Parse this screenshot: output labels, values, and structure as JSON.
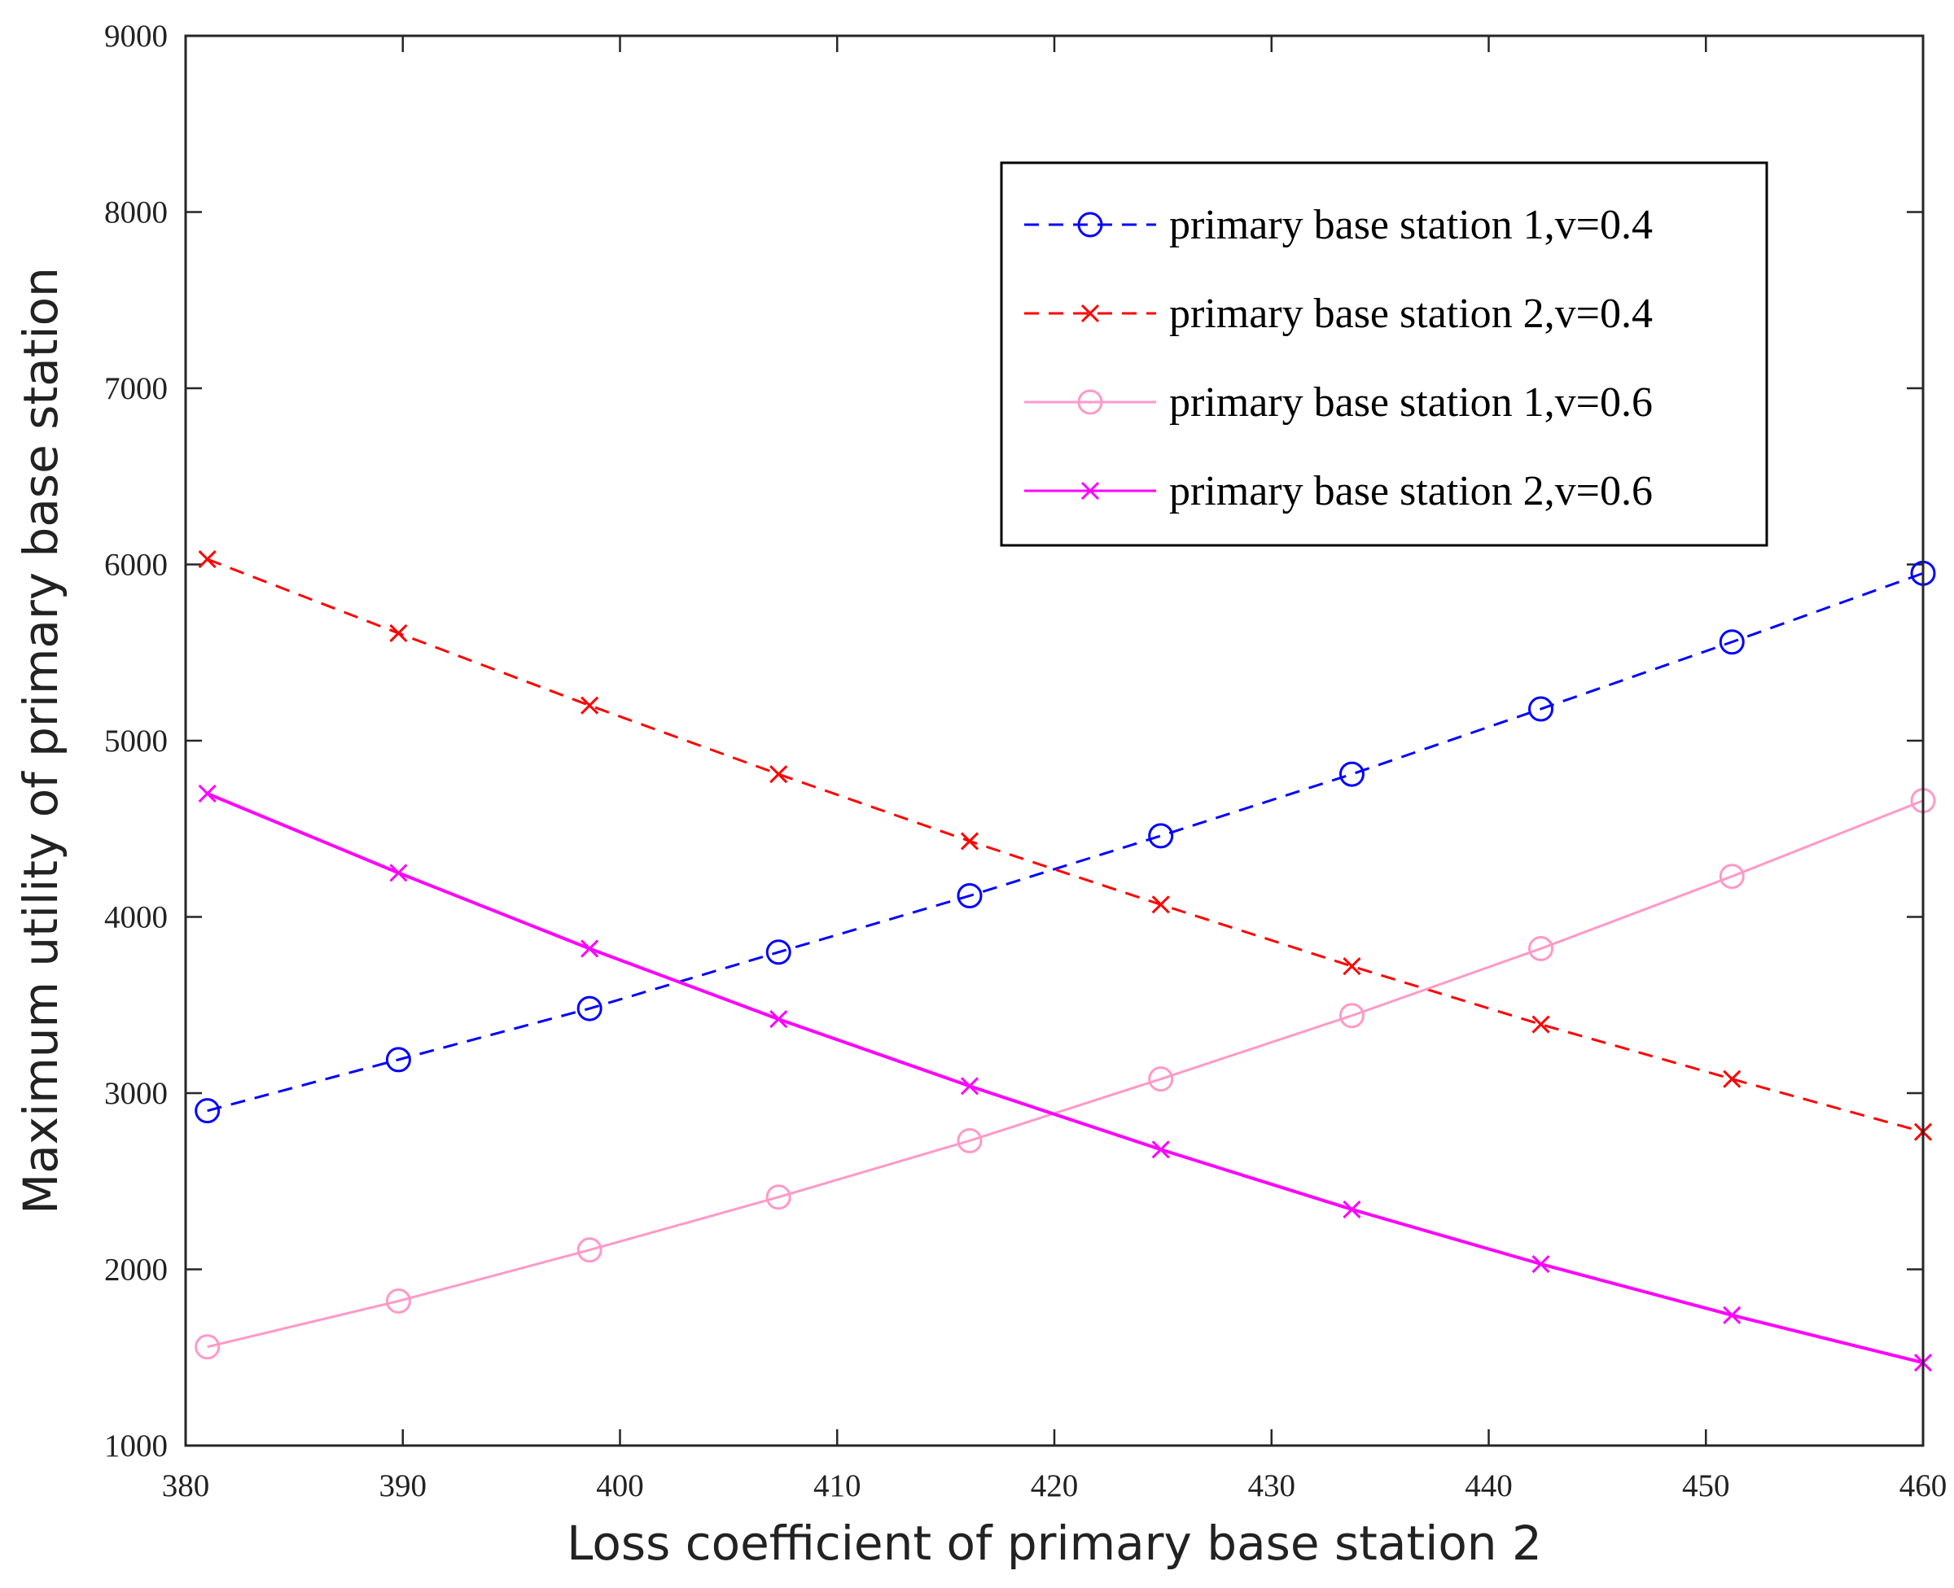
{
  "chart_data": {
    "type": "line",
    "title": "",
    "xlabel": "Loss coefficient of primary base station 2",
    "ylabel": "Maximum utility of primary base station",
    "xlim": [
      380,
      460
    ],
    "ylim": [
      1000,
      9000
    ],
    "x_ticks": [
      380,
      390,
      400,
      410,
      420,
      430,
      440,
      450,
      460
    ],
    "y_ticks": [
      1000,
      2000,
      3000,
      4000,
      5000,
      6000,
      7000,
      8000,
      9000
    ],
    "grid": false,
    "legend_position": "top-right",
    "x": [
      381,
      389.8,
      398.6,
      407.3,
      416.1,
      424.9,
      433.7,
      442.4,
      451.2,
      460
    ],
    "series": [
      {
        "name": "primary base station 1,v=0.4",
        "color": "#0000ff",
        "line_style": "dashed",
        "marker": "circle",
        "values": [
          2900,
          3190,
          3480,
          3800,
          4120,
          4460,
          4810,
          5180,
          5560,
          5950
        ]
      },
      {
        "name": "primary base station 2,v=0.4",
        "color": "#ff0000",
        "line_style": "dashed",
        "marker": "x",
        "values": [
          6030,
          5610,
          5200,
          4810,
          4430,
          4070,
          3720,
          3390,
          3080,
          2780
        ]
      },
      {
        "name": "primary base station 1,v=0.6",
        "color": "#ff99c8",
        "line_style": "solid",
        "marker": "circle",
        "values": [
          1560,
          1820,
          2110,
          2410,
          2730,
          3080,
          3440,
          3820,
          4230,
          4660
        ]
      },
      {
        "name": "primary base station 2,v=0.6",
        "color": "#ff00ff",
        "line_style": "solid",
        "marker": "x",
        "values": [
          4700,
          4250,
          3820,
          3420,
          3040,
          2680,
          2340,
          2030,
          1740,
          1470
        ]
      }
    ]
  }
}
